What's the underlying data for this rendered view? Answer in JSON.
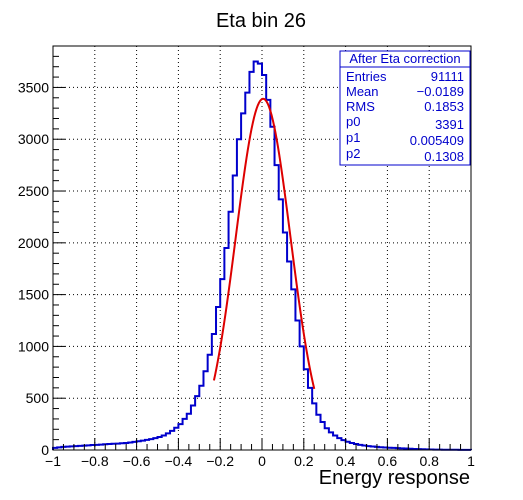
{
  "chart_data": {
    "type": "histogram",
    "title": "Eta bin 26",
    "xlabel": "Energy response",
    "ylabel": "",
    "xlim": [
      -1,
      1
    ],
    "ylim": [
      0,
      3900
    ],
    "xticks": [
      -1,
      -0.8,
      -0.6,
      -0.4,
      -0.2,
      0,
      0.2,
      0.4,
      0.6,
      0.8,
      1
    ],
    "xtick_labels": [
      "−1",
      "−0.8",
      "−0.6",
      "−0.4",
      "−0.2",
      "0",
      "0.2",
      "0.4",
      "0.6",
      "0.8",
      "1"
    ],
    "yticks": [
      0,
      500,
      1000,
      1500,
      2000,
      2500,
      3000,
      3500
    ],
    "ytick_labels": [
      "0",
      "500",
      "1000",
      "1500",
      "2000",
      "2500",
      "3000",
      "3500"
    ],
    "grid": true,
    "bin_width": 0.02,
    "x_start": -1,
    "colors": {
      "histogram": "#0000cc",
      "fit": "#dd0000",
      "grid": "#000000"
    },
    "series": [
      {
        "values": [
          20,
          25,
          30,
          32,
          35,
          38,
          40,
          42,
          45,
          48,
          50,
          52,
          55,
          58,
          60,
          62,
          65,
          68,
          72,
          78,
          85,
          90,
          98,
          105,
          115,
          125,
          140,
          160,
          185,
          215,
          250,
          300,
          350,
          430,
          520,
          620,
          760,
          920,
          1120,
          1380,
          1650,
          1950,
          2300,
          2650,
          3000,
          3250,
          3450,
          3650,
          3750,
          3730,
          3620,
          3380,
          3120,
          2750,
          2420,
          2100,
          1820,
          1550,
          1250,
          1000,
          780,
          600,
          450,
          340,
          270,
          210,
          170,
          140,
          115,
          95,
          80,
          68,
          58,
          50,
          44,
          38,
          34,
          30,
          27,
          24,
          22,
          20,
          18,
          16,
          14,
          12,
          10,
          8,
          7,
          6,
          5,
          4,
          4,
          3,
          3,
          2,
          2,
          1,
          1,
          1
        ]
      }
    ],
    "fit": {
      "type": "gaussian",
      "p0": 3391,
      "p1": 0.005409,
      "p2": 0.1308,
      "x_range": [
        -0.23,
        0.25
      ]
    },
    "stats_box": {
      "title": "After Eta correction",
      "rows": [
        {
          "label": "Entries",
          "value": "91111"
        },
        {
          "label": "Mean",
          "value": "−0.0189"
        },
        {
          "label": "RMS",
          "value": "0.1853"
        },
        {
          "label": "p0",
          "value": "3391"
        },
        {
          "label": "p1",
          "value": "0.005409"
        },
        {
          "label": "p2",
          "value": "0.1308"
        }
      ],
      "placement": "top-right"
    }
  }
}
